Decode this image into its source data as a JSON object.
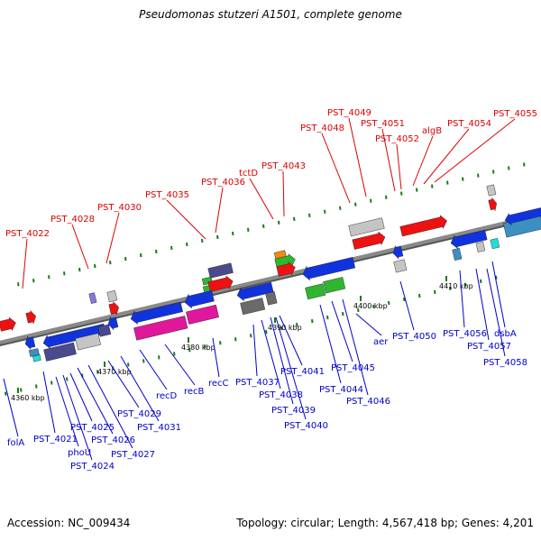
{
  "title": "Pseudomonas stutzeri A1501, complete genome",
  "footer": {
    "accession": "Accession: NC_009434",
    "summary": "Topology: circular; Length: 4,567,418 bp; Genes: 4,201"
  },
  "colors": {
    "backbone": "#8a8a8a",
    "forward_label": "#dd0000",
    "reverse_label": "#0000cc",
    "gene_red": "#ee1111",
    "gene_blue": "#1133dd",
    "gene_grey": "#c4c4c4",
    "gene_darkgrey": "#6a6a6a",
    "gene_purple": "#4a4a8c",
    "gene_magenta": "#e0179b",
    "gene_green": "#2fb62f",
    "gene_teal": "#3c8fc0",
    "gene_orange": "#f08a10",
    "gene_cyan": "#22dddd",
    "gene_lavender": "#8877dd",
    "tick_green": "#1a7a1a"
  },
  "scale_ticks": [
    "4360 kbp",
    "4370 kbp",
    "4380 kbp",
    "4390 kbp",
    "4400 kbp",
    "4410 kbp"
  ],
  "forward_labels": [
    "PST_4022",
    "PST_4028",
    "PST_4030",
    "PST_4035",
    "PST_4036",
    "tctD",
    "PST_4043",
    "PST_4048",
    "PST_4049",
    "PST_4051",
    "PST_4052",
    "algB",
    "PST_4054",
    "PST_4055"
  ],
  "reverse_labels": [
    "folA",
    "PST_4021",
    "phoU",
    "PST_4024",
    "PST_4025",
    "PST_4026",
    "PST_4027",
    "PST_4029",
    "PST_4031",
    "recD",
    "recB",
    "recC",
    "PST_4037",
    "PST_4038",
    "PST_4039",
    "PST_4040",
    "PST_4041",
    "PST_4044",
    "PST_4045",
    "PST_4046",
    "aer",
    "PST_4050",
    "PST_4056",
    "PST_4057",
    "dsbA",
    "PST_4058"
  ]
}
